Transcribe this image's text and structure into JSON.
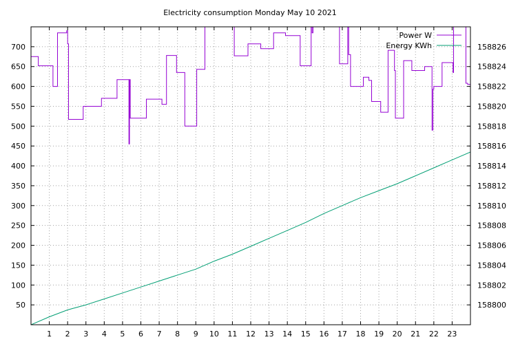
{
  "chart_data": {
    "type": "line",
    "title": "Electricity consumption Monday May 10 2021",
    "xlabel": "",
    "ylabel": "",
    "y2label": "",
    "grid": true,
    "legend_position": "top-right",
    "xlim": [
      0,
      24
    ],
    "ylim": [
      0,
      750
    ],
    "y2lim": [
      158798,
      158828
    ],
    "x_ticks": [
      1,
      2,
      3,
      4,
      5,
      6,
      7,
      8,
      9,
      10,
      11,
      12,
      13,
      14,
      15,
      16,
      17,
      18,
      19,
      20,
      21,
      22,
      23
    ],
    "y_ticks": [
      50,
      100,
      150,
      200,
      250,
      300,
      350,
      400,
      450,
      500,
      550,
      600,
      650,
      700
    ],
    "y2_ticks": [
      158800,
      158802,
      158804,
      158806,
      158808,
      158810,
      158812,
      158814,
      158816,
      158818,
      158820,
      158822,
      158824,
      158826
    ],
    "series": [
      {
        "name": "Power W",
        "axis": "left",
        "color": "#9400d3",
        "step": true,
        "x": [
          0,
          0.4,
          1.2,
          1.45,
          1.95,
          2.0,
          2.05,
          2.1,
          2.85,
          3.85,
          4.7,
          5.35,
          5.38,
          5.42,
          6.3,
          7.15,
          7.4,
          7.95,
          8.4,
          9.05,
          9.5,
          9.55,
          11.1,
          11.85,
          12.55,
          13.25,
          13.9,
          14.7,
          15.3,
          15.35,
          15.4,
          16.85,
          17.3,
          17.35,
          17.45,
          18.15,
          18.45,
          18.6,
          19.1,
          19.5,
          19.85,
          19.9,
          20.35,
          20.8,
          21.5,
          21.9,
          21.95,
          22.0,
          22.45,
          23.05,
          23.08,
          23.75,
          23.85
        ],
        "values": [
          675,
          652,
          600,
          735,
          740,
          707,
          517,
          517,
          550,
          570,
          617,
          455,
          617,
          520,
          568,
          555,
          678,
          635,
          500,
          643,
          752,
          752,
          677,
          707,
          695,
          735,
          728,
          652,
          752,
          735,
          752,
          657,
          752,
          680,
          600,
          623,
          615,
          562,
          535,
          691,
          640,
          520,
          665,
          640,
          650,
          490,
          593,
          600,
          660,
          635,
          752,
          608,
          605
        ]
      },
      {
        "name": "Energy KWh",
        "axis": "right",
        "color": "#009e73",
        "step": false,
        "x": [
          0,
          1,
          2,
          3,
          4,
          5,
          6,
          7,
          8,
          9,
          10,
          11,
          12,
          13,
          14,
          15,
          16,
          17,
          18,
          19,
          20,
          21,
          22,
          23,
          24
        ],
        "values": [
          158798.0,
          158798.8,
          158799.5,
          158800.0,
          158800.6,
          158801.2,
          158801.8,
          158802.4,
          158803.0,
          158803.6,
          158804.4,
          158805.1,
          158805.9,
          158806.7,
          158807.5,
          158808.3,
          158809.2,
          158810.0,
          158810.8,
          158811.5,
          158812.2,
          158813.0,
          158813.8,
          158814.6,
          158815.4
        ]
      }
    ]
  }
}
